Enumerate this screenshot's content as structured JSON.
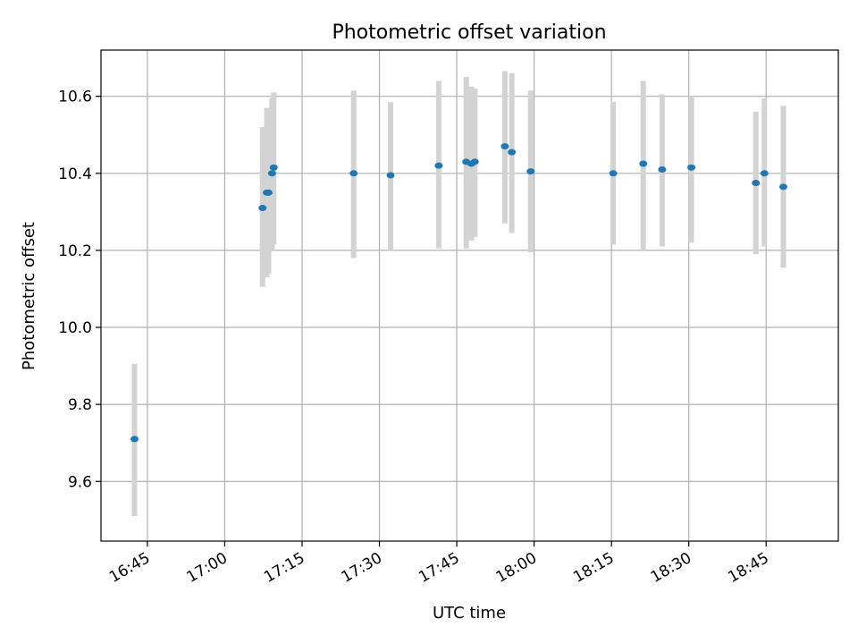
{
  "chart_data": {
    "type": "scatter",
    "title": "Photometric offset variation",
    "xlabel": "UTC time",
    "ylabel": "Photometric offset",
    "x_tick_labels": [
      "16:45",
      "17:00",
      "17:15",
      "17:30",
      "17:45",
      "18:00",
      "18:15",
      "18:30",
      "18:45"
    ],
    "y_tick_labels": [
      "9.6",
      "9.8",
      "10.0",
      "10.2",
      "10.4",
      "10.6"
    ],
    "y_ticks": [
      9.6,
      9.8,
      10.0,
      10.2,
      10.4,
      10.6
    ],
    "xlim": [
      "16:36:00",
      "18:59:00"
    ],
    "ylim": [
      9.445,
      10.72
    ],
    "grid": true,
    "colors": {
      "points": "#1f77b4",
      "error_bars": "#d3d3d3",
      "grid": "#b0b0b0",
      "axes": "#000000"
    },
    "series": [
      {
        "x": [
          "16:42:30",
          "17:07:20",
          "17:08:10",
          "17:08:30",
          "17:09:10",
          "17:09:30",
          "17:25:00",
          "17:32:10",
          "17:41:30",
          "17:46:50",
          "17:47:50",
          "17:48:30",
          "17:54:20",
          "17:55:40",
          "17:59:20",
          "18:15:20",
          "18:21:10",
          "18:24:50",
          "18:30:30",
          "18:43:00",
          "18:44:40",
          "18:48:20"
        ],
        "y": [
          9.71,
          10.31,
          10.35,
          10.35,
          10.4,
          10.415,
          10.4,
          10.395,
          10.42,
          10.43,
          10.425,
          10.43,
          10.47,
          10.455,
          10.405,
          10.4,
          10.425,
          10.41,
          10.415,
          10.375,
          10.4,
          10.365
        ],
        "err_low": [
          9.51,
          10.105,
          10.13,
          10.14,
          10.2,
          10.215,
          10.18,
          10.2,
          10.205,
          10.205,
          10.225,
          10.235,
          10.27,
          10.245,
          10.195,
          10.215,
          10.2,
          10.21,
          10.22,
          10.19,
          10.21,
          10.155
        ],
        "err_high": [
          9.905,
          10.52,
          10.57,
          10.54,
          10.595,
          10.61,
          10.615,
          10.585,
          10.64,
          10.65,
          10.625,
          10.62,
          10.665,
          10.66,
          10.615,
          10.585,
          10.64,
          10.605,
          10.6,
          10.56,
          10.595,
          10.575
        ]
      }
    ]
  }
}
